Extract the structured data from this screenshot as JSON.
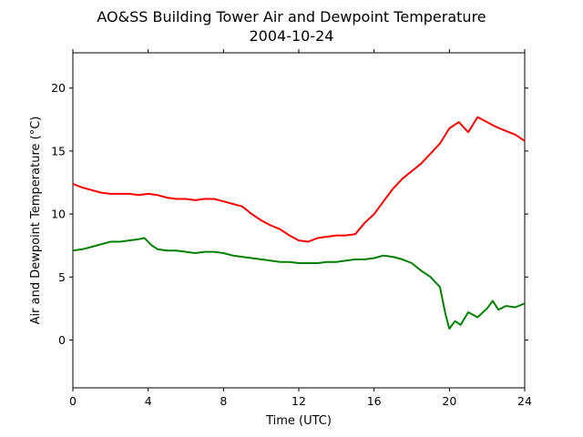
{
  "chart_data": {
    "type": "line",
    "title": "AO&SS Building Tower Air and Dewpoint Temperature",
    "subtitle": "2004-10-24",
    "xlabel": "Time (UTC)",
    "ylabel": "Air and Dewpoint Temperature (°C)",
    "xlim": [
      0,
      24
    ],
    "ylim": [
      -3.8,
      22.8
    ],
    "xticks": [
      "0",
      "4",
      "8",
      "12",
      "16",
      "20",
      "24"
    ],
    "yticks": [
      "0",
      "5",
      "10",
      "15",
      "20"
    ],
    "grid": false,
    "legend": "none",
    "series": [
      {
        "color": "#ff0000",
        "x": [
          0,
          0.5,
          1,
          1.5,
          2,
          2.5,
          3,
          3.5,
          4,
          4.5,
          5,
          5.5,
          6,
          6.5,
          7,
          7.5,
          8,
          8.5,
          9,
          9.5,
          10,
          10.5,
          11,
          11.5,
          12,
          12.5,
          13,
          13.5,
          14,
          14.5,
          15,
          15.5,
          16,
          16.5,
          17,
          17.5,
          18,
          18.5,
          19,
          19.5,
          20,
          20.5,
          21,
          21.5,
          22,
          22.5,
          23,
          23.5,
          24
        ],
        "y": [
          12.4,
          12.1,
          11.9,
          11.7,
          11.6,
          11.6,
          11.6,
          11.5,
          11.6,
          11.5,
          11.3,
          11.2,
          11.2,
          11.1,
          11.2,
          11.2,
          11.0,
          10.8,
          10.6,
          10.0,
          9.5,
          9.1,
          8.8,
          8.3,
          7.9,
          7.8,
          8.1,
          8.2,
          8.3,
          8.3,
          8.4,
          9.3,
          10.0,
          11.0,
          12.0,
          12.8,
          13.4,
          14.0,
          14.8,
          15.6,
          16.8,
          17.3,
          16.5,
          17.7,
          17.3,
          16.9,
          16.6,
          16.3,
          15.8
        ]
      },
      {
        "color": "#008000",
        "x": [
          0,
          0.5,
          1,
          1.5,
          2,
          2.5,
          3,
          3.5,
          3.8,
          4.2,
          4.5,
          5,
          5.5,
          6,
          6.5,
          7,
          7.5,
          8,
          8.5,
          9,
          9.5,
          10,
          10.5,
          11,
          11.5,
          12,
          12.5,
          13,
          13.5,
          14,
          14.5,
          15,
          15.5,
          16,
          16.5,
          17,
          17.5,
          18,
          18.5,
          19,
          19.5,
          19.8,
          20,
          20.3,
          20.6,
          21,
          21.5,
          22,
          22.3,
          22.6,
          23,
          23.5,
          24
        ],
        "y": [
          7.1,
          7.2,
          7.4,
          7.6,
          7.8,
          7.8,
          7.9,
          8.0,
          8.1,
          7.5,
          7.2,
          7.1,
          7.1,
          7.0,
          6.9,
          7.0,
          7.0,
          6.9,
          6.7,
          6.6,
          6.5,
          6.4,
          6.3,
          6.2,
          6.2,
          6.1,
          6.1,
          6.1,
          6.2,
          6.2,
          6.3,
          6.4,
          6.4,
          6.5,
          6.7,
          6.6,
          6.4,
          6.1,
          5.5,
          5.0,
          4.2,
          2.0,
          0.9,
          1.5,
          1.2,
          2.2,
          1.8,
          2.5,
          3.1,
          2.4,
          2.7,
          2.6,
          2.9
        ]
      }
    ]
  }
}
